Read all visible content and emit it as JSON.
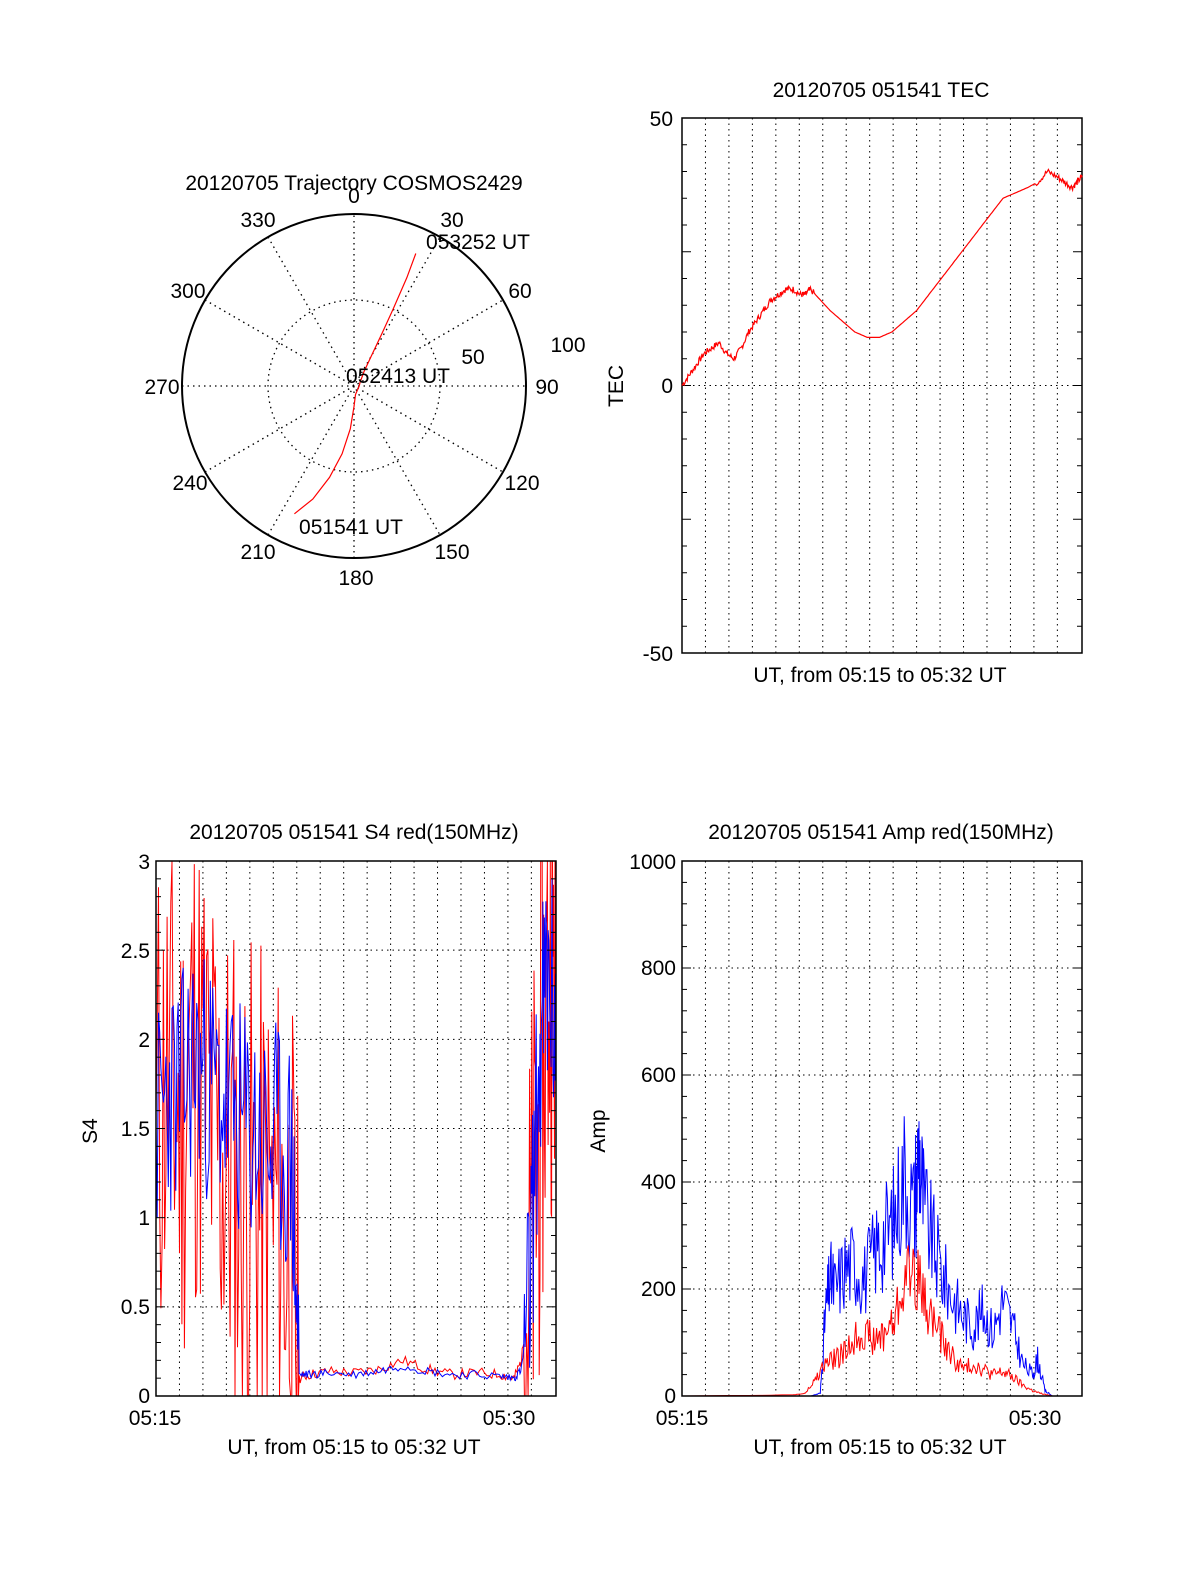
{
  "colors": {
    "red": "#ff0000",
    "blue": "#0000ff",
    "axis": "#000000",
    "grid": "#000000",
    "background": "#ffffff"
  },
  "chart_data": [
    {
      "id": "trajectory",
      "type": "polar",
      "title": "20120705 Trajectory COSMOS2429",
      "azimuth_labels": [
        "0",
        "30",
        "60",
        "90",
        "120",
        "150",
        "180",
        "210",
        "240",
        "270",
        "300",
        "330"
      ],
      "radial_labels": [
        "50",
        "100"
      ],
      "radial_range": [
        0,
        100
      ],
      "track": {
        "color": "red",
        "points": [
          [
            205,
            82
          ],
          [
            200,
            70
          ],
          [
            195,
            55
          ],
          [
            190,
            40
          ],
          [
            185,
            25
          ],
          [
            180,
            12
          ],
          [
            170,
            5
          ],
          [
            90,
            3
          ],
          [
            60,
            4
          ],
          [
            35,
            10
          ],
          [
            30,
            20
          ],
          [
            28,
            35
          ],
          [
            27,
            50
          ],
          [
            26,
            70
          ],
          [
            25,
            85
          ]
        ]
      },
      "annotations": [
        "053252 UT",
        "052413 UT",
        "051541 UT"
      ]
    },
    {
      "id": "tec",
      "type": "line",
      "title": "20120705 051541 TEC",
      "ylabel": "TEC",
      "xlabel": "UT, from 05:15 to 05:32 UT",
      "ylim": [
        -50,
        50
      ],
      "yticks": [
        "50",
        "0",
        "-50"
      ],
      "xlim": [
        0,
        16.2
      ],
      "series": [
        {
          "name": "TEC",
          "color": "red",
          "x": [
            0,
            0.3,
            0.6,
            0.9,
            1.2,
            1.5,
            1.8,
            2.1,
            2.4,
            2.7,
            3.0,
            3.3,
            3.6,
            3.9,
            4.2,
            4.5,
            4.8,
            5.0,
            5.2,
            5.6,
            6.0,
            6.5,
            7.0,
            7.5,
            8.0,
            8.5,
            9.0,
            9.5,
            10.0,
            10.5,
            11.0,
            11.5,
            12.0,
            12.5,
            13.0,
            13.5,
            14.0,
            14.4,
            14.8,
            15.2,
            15.5,
            15.8,
            16.0,
            16.2
          ],
          "values": [
            0,
            2,
            4,
            6,
            7,
            8,
            6,
            5,
            7,
            10,
            12,
            14,
            16,
            17,
            18,
            18,
            17,
            17,
            18,
            16,
            14,
            12,
            10,
            9,
            9,
            10,
            12,
            14,
            17,
            20,
            23,
            26,
            29,
            32,
            35,
            36,
            37,
            38,
            40,
            39,
            38,
            37,
            38,
            39
          ]
        }
      ]
    },
    {
      "id": "s4",
      "type": "line",
      "title": "20120705 051541 S4 red(150MHz)",
      "ylabel": "S4",
      "xlabel": "UT, from 05:15 to 05:32 UT",
      "ylim": [
        0,
        3
      ],
      "yticks": [
        "0",
        "0.5",
        "1",
        "1.5",
        "2",
        "2.5",
        "3"
      ],
      "xtick_labels": [
        "05:15",
        "05:30"
      ],
      "xlim": [
        0,
        16.2
      ],
      "series": [
        {
          "name": "red(150MHz)",
          "color": "red",
          "x": [
            0,
            0.5,
            1.0,
            1.5,
            2.0,
            2.5,
            3.0,
            3.5,
            4.0,
            4.5,
            5.0,
            5.5,
            5.8,
            6.2,
            7.0,
            8.0,
            9.0,
            10.0,
            11.0,
            12.0,
            13.0,
            14.0,
            14.5,
            14.8,
            15.1,
            15.4,
            15.7,
            16.0,
            16.2
          ],
          "values": [
            1.6,
            1.8,
            1.5,
            2.0,
            1.7,
            1.4,
            1.3,
            1.2,
            1.1,
            1.0,
            1.0,
            0.8,
            0.1,
            0.12,
            0.14,
            0.13,
            0.15,
            0.2,
            0.15,
            0.12,
            0.13,
            0.12,
            0.1,
            0.2,
            0.6,
            1.2,
            2.0,
            2.5,
            2.4
          ]
        },
        {
          "name": "blue",
          "color": "blue",
          "x": [
            0,
            0.5,
            1.0,
            1.5,
            2.0,
            2.5,
            3.0,
            3.5,
            4.0,
            4.5,
            5.0,
            5.5,
            5.8,
            6.2,
            7.0,
            8.0,
            9.0,
            10.0,
            11.0,
            12.0,
            13.0,
            14.0,
            14.5,
            14.8,
            15.1,
            15.4,
            15.7,
            16.0,
            16.2
          ],
          "values": [
            1.5,
            1.7,
            1.7,
            1.9,
            1.8,
            1.7,
            1.6,
            1.5,
            1.5,
            1.4,
            1.4,
            1.3,
            0.12,
            0.12,
            0.13,
            0.12,
            0.14,
            0.17,
            0.14,
            0.12,
            0.12,
            0.11,
            0.1,
            0.15,
            0.5,
            1.5,
            2.2,
            2.3,
            2.0
          ]
        }
      ]
    },
    {
      "id": "amp",
      "type": "line",
      "title": "20120705 051541 Amp red(150MHz)",
      "ylabel": "Amp",
      "xlabel": "UT, from 05:15 to 05:32 UT",
      "ylim": [
        0,
        1000
      ],
      "yticks": [
        "0",
        "200",
        "400",
        "600",
        "800",
        "1000"
      ],
      "xtick_labels": [
        "05:15",
        "05:30"
      ],
      "xlim": [
        0,
        16.2
      ],
      "series": [
        {
          "name": "red(150MHz)",
          "color": "red",
          "x": [
            0,
            4.5,
            5.0,
            5.4,
            5.8,
            6.2,
            6.6,
            7.0,
            7.4,
            7.8,
            8.2,
            8.6,
            9.0,
            9.4,
            9.8,
            10.2,
            10.6,
            11.0,
            11.4,
            11.8,
            12.2,
            12.6,
            13.0,
            13.4,
            13.8,
            14.2,
            14.5,
            15.0,
            16.2
          ],
          "values": [
            0,
            2,
            5,
            30,
            60,
            70,
            80,
            110,
            120,
            100,
            120,
            140,
            220,
            240,
            180,
            140,
            100,
            70,
            50,
            60,
            50,
            40,
            45,
            35,
            20,
            10,
            5,
            0,
            0
          ]
        },
        {
          "name": "blue",
          "color": "blue",
          "x": [
            0,
            5.2,
            5.6,
            5.8,
            6.0,
            6.2,
            6.6,
            7.0,
            7.4,
            7.8,
            8.2,
            8.6,
            9.0,
            9.4,
            9.6,
            9.8,
            10.2,
            10.6,
            11.0,
            11.4,
            11.8,
            12.2,
            12.6,
            13.0,
            13.4,
            13.8,
            14.2,
            14.4,
            14.7,
            15.0,
            16.2
          ],
          "values": [
            0,
            0,
            5,
            150,
            220,
            200,
            240,
            250,
            220,
            270,
            300,
            330,
            420,
            350,
            470,
            350,
            280,
            220,
            180,
            150,
            130,
            160,
            120,
            180,
            130,
            60,
            40,
            70,
            10,
            0,
            0
          ]
        }
      ]
    }
  ]
}
